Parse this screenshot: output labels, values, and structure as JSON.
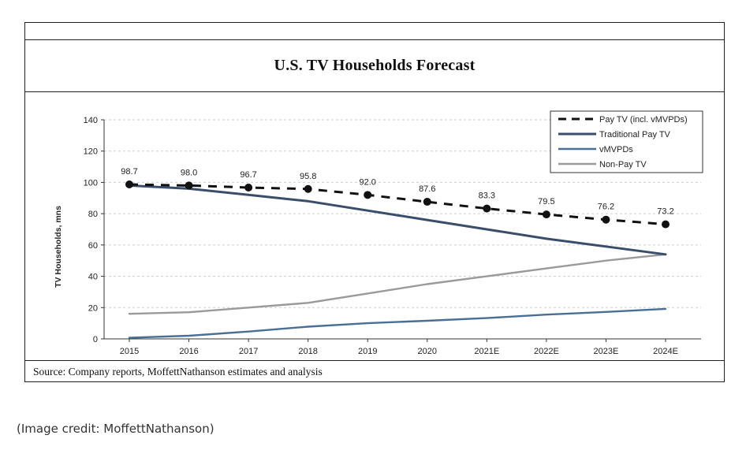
{
  "chart_data": {
    "type": "line",
    "title": "U.S. TV Households Forecast",
    "ylabel": "TV Households, mns",
    "xlabel": "",
    "ylim": [
      0,
      140
    ],
    "yticks": [
      0,
      20,
      40,
      60,
      80,
      100,
      120,
      140
    ],
    "grid": true,
    "legend_position": "top-right",
    "categories": [
      "2015",
      "2016",
      "2017",
      "2018",
      "2019",
      "2020",
      "2021E",
      "2022E",
      "2023E",
      "2024E"
    ],
    "series": [
      {
        "name": "Pay TV (incl. vMVPDs)",
        "style": "dashed-markers",
        "color": "#111111",
        "values": [
          98.7,
          98.0,
          96.7,
          95.8,
          92.0,
          87.6,
          83.3,
          79.5,
          76.2,
          73.2
        ],
        "labels": [
          "98.7",
          "98.0",
          "96.7",
          "95.8",
          "92.0",
          "87.6",
          "83.3",
          "79.5",
          "76.2",
          "73.2"
        ]
      },
      {
        "name": "Traditional Pay TV",
        "style": "solid-thick",
        "color": "#3a4d6b",
        "values": [
          98.0,
          96.0,
          92.0,
          88.0,
          82.0,
          76.0,
          70.0,
          64.0,
          59.0,
          54.0
        ]
      },
      {
        "name": "vMVPDs",
        "style": "solid",
        "color": "#4a6f95",
        "values": [
          0.7,
          2.0,
          4.7,
          7.8,
          10.0,
          11.6,
          13.3,
          15.5,
          17.2,
          19.2
        ]
      },
      {
        "name": "Non-Pay TV",
        "style": "solid",
        "color": "#9a9a9a",
        "values": [
          16.0,
          17.0,
          20.0,
          23.0,
          29.0,
          35.0,
          40.0,
          45.0,
          50.0,
          54.0
        ]
      }
    ]
  },
  "source": "Source: Company reports, MoffettNathanson estimates and analysis",
  "credit": "(Image credit: MoffettNathanson)"
}
